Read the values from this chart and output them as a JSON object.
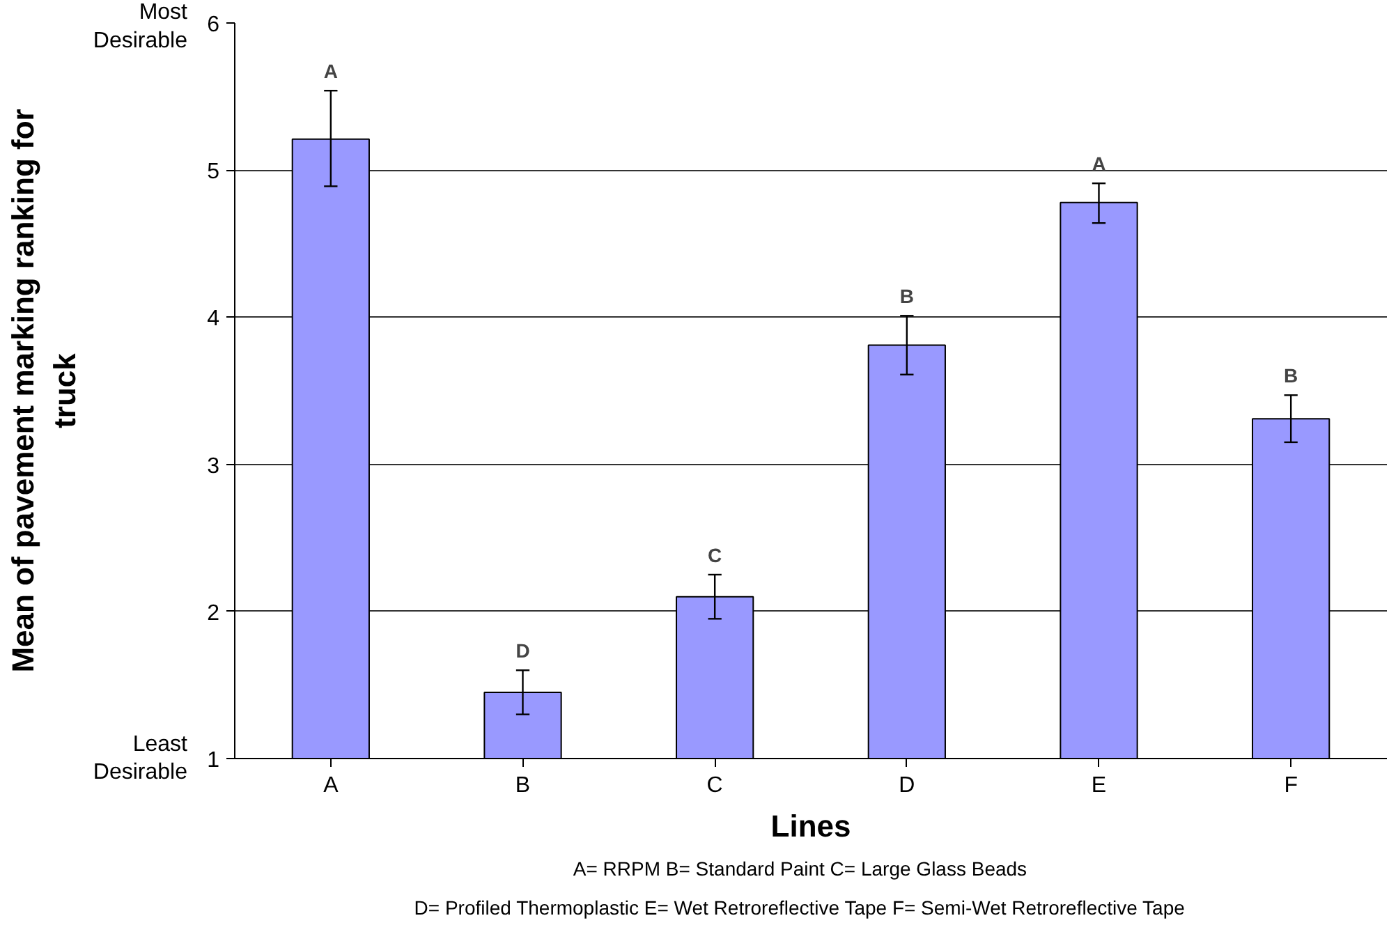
{
  "chart_data": {
    "type": "bar",
    "xlabel": "Lines",
    "ylabel": "Mean of pavement marking ranking for truck",
    "categories": [
      "A",
      "B",
      "C",
      "D",
      "E",
      "F"
    ],
    "values": [
      5.21,
      1.45,
      2.1,
      3.81,
      4.78,
      3.31
    ],
    "errors": [
      [
        4.89,
        5.54
      ],
      [
        1.3,
        1.6
      ],
      [
        1.95,
        2.25
      ],
      [
        3.61,
        4.01
      ],
      [
        4.64,
        4.91
      ],
      [
        3.15,
        3.47
      ]
    ],
    "color": "#9999ff",
    "ylim": [
      1,
      6
    ],
    "yticks": [
      1,
      2,
      3,
      4,
      5,
      6
    ],
    "grid": "y",
    "annotations": [
      {
        "text": "A",
        "x": "A",
        "y": 5.54
      },
      {
        "text": "D",
        "x": "B",
        "y": 1.6
      },
      {
        "text": "C",
        "x": "C",
        "y": 2.25
      },
      {
        "text": "B",
        "x": "D",
        "y": 4.01
      },
      {
        "text": "A",
        "x": "E",
        "y": 4.91
      },
      {
        "text": "B",
        "x": "F",
        "y": 3.47
      },
      "Most Desirable",
      "Least Desirable",
      "A= RRPM   B= Standard Paint   C= Large Glass Beads",
      "D= Profiled Thermoplastic   E= Wet Retroreflective Tape   F= Semi-Wet Retroreflective Tape"
    ]
  }
}
